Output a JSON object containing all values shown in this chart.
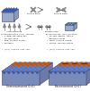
{
  "bg_color": "#ffffff",
  "figure_bg": "#ffffff",
  "atom_orange": "#cc5500",
  "atom_blue": "#3355aa",
  "atom_blue2": "#5577cc",
  "atom_grey": "#888888",
  "atom_dark": "#555555",
  "box_face_top": "#c8d0e8",
  "box_face_front": "#a0aac8",
  "box_face_right": "#9098b8",
  "box_edge": "#404060",
  "grid_line": "#6060a0",
  "text_color": "#111111",
  "arrow_color": "#555555",
  "iso_box_face": "#8899cc",
  "iso_box_top": "#aabbdd",
  "iso_box_right": "#7788bb"
}
